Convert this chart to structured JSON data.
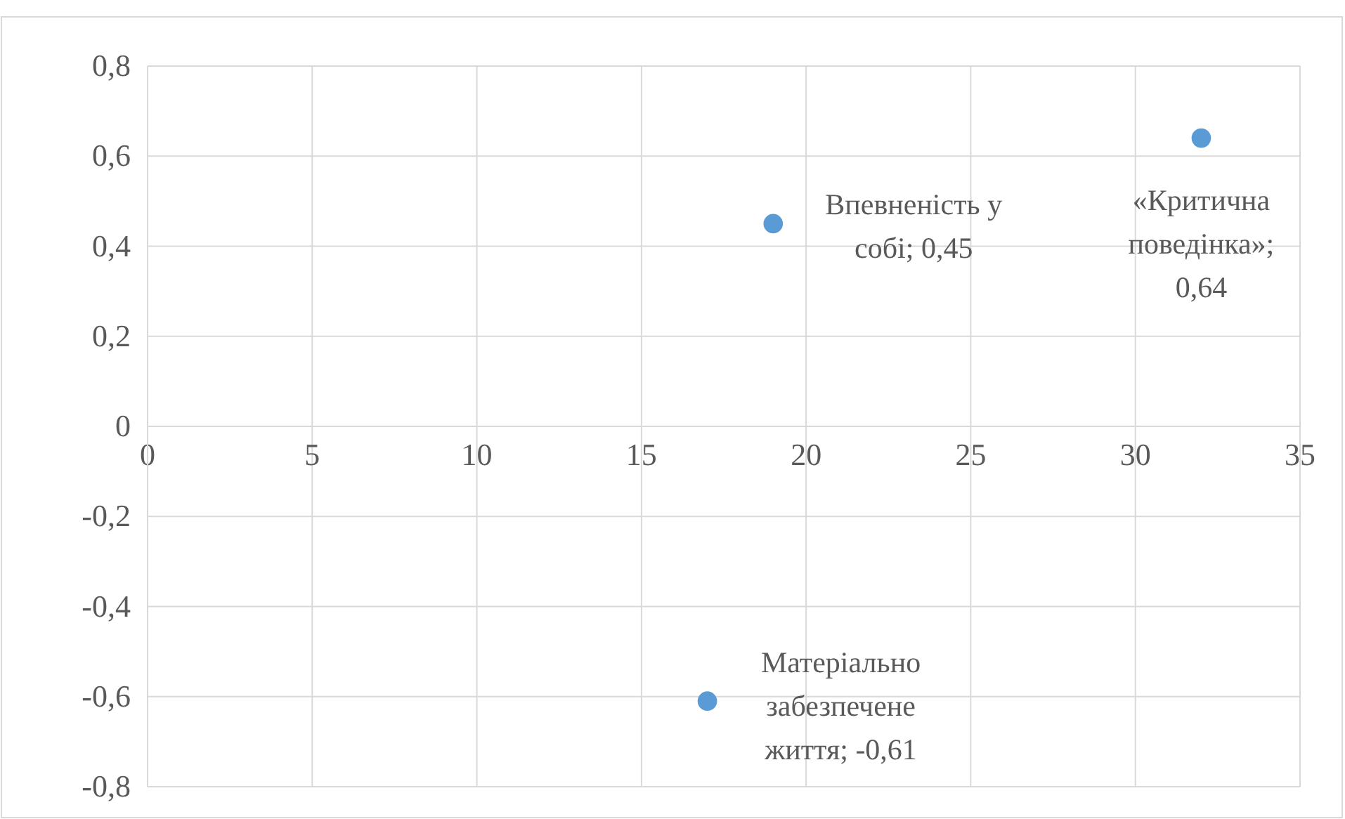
{
  "chart_data": {
    "type": "scatter",
    "x": [
      19,
      32,
      17
    ],
    "values": [
      0.45,
      0.64,
      -0.61
    ],
    "color": "#5b9bd5",
    "marker": "circle",
    "grid": true,
    "xlim": [
      0,
      35
    ],
    "xticks": [
      0,
      5,
      10,
      15,
      20,
      25,
      30,
      35
    ],
    "ylim": [
      -0.8,
      0.8
    ],
    "yticks": [
      {
        "value": -0.8,
        "label": "-0,8"
      },
      {
        "value": -0.6,
        "label": "-0,6"
      },
      {
        "value": -0.4,
        "label": "-0,4"
      },
      {
        "value": -0.2,
        "label": "-0,2"
      },
      0,
      {
        "value": 0.2,
        "label": "0,2"
      },
      {
        "value": 0.4,
        "label": "0,4"
      },
      {
        "value": 0.6,
        "label": "0,6"
      },
      {
        "value": 0.8,
        "label": "0,8"
      }
    ],
    "annotations": [
      {
        "text": "Впевненість у собі; 0,45",
        "x": 19,
        "y": 0.45
      },
      {
        "text": "«Критична поведінка»; 0,64",
        "x": 32,
        "y": 0.64
      },
      {
        "text": "Матеріально забезпечене життя; -0,61",
        "x": 17,
        "y": -0.61
      }
    ]
  }
}
